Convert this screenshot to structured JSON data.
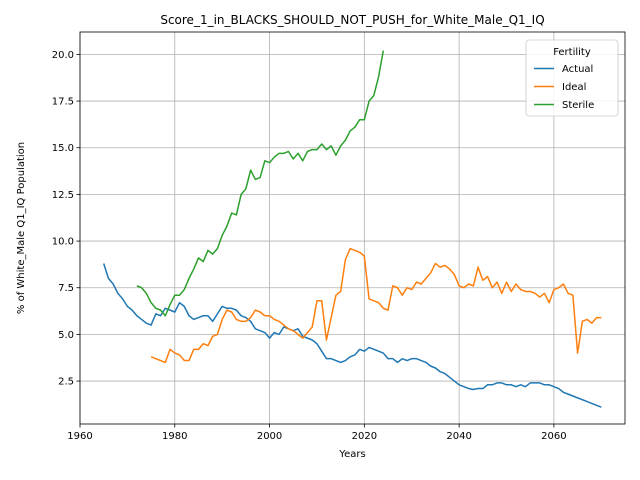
{
  "chart_data": {
    "type": "line",
    "title": "Score_1_in_BLACKS_SHOULD_NOT_PUSH_for_White_Male_Q1_IQ",
    "xlabel": "Years",
    "ylabel": "% of White_Male Q1_IQ Population",
    "xlim": [
      1960,
      2075
    ],
    "ylim": [
      0.2,
      21.2
    ],
    "xticks": [
      1960,
      1980,
      2000,
      2020,
      2040,
      2060
    ],
    "xtick_labels": [
      "1960",
      "1980",
      "2000",
      "2020",
      "2040",
      "2060"
    ],
    "yticks": [
      2.5,
      5.0,
      7.5,
      10.0,
      12.5,
      15.0,
      17.5,
      20.0
    ],
    "ytick_labels": [
      "2.5",
      "5.0",
      "7.5",
      "10.0",
      "12.5",
      "15.0",
      "17.5",
      "20.0"
    ],
    "grid": true,
    "legend": {
      "title": "Fertility",
      "placement": "top-right"
    },
    "series": [
      {
        "name": "Actual",
        "color": "#1f77b4",
        "x": [
          1965,
          1966,
          1967,
          1968,
          1969,
          1970,
          1971,
          1972,
          1973,
          1974,
          1975,
          1976,
          1977,
          1978,
          1979,
          1980,
          1981,
          1982,
          1983,
          1984,
          1985,
          1986,
          1987,
          1988,
          1989,
          1990,
          1991,
          1992,
          1993,
          1994,
          1995,
          1996,
          1997,
          1998,
          1999,
          2000,
          2001,
          2002,
          2003,
          2004,
          2005,
          2006,
          2007,
          2008,
          2009,
          2010,
          2011,
          2012,
          2013,
          2014,
          2015,
          2016,
          2017,
          2018,
          2019,
          2020,
          2021,
          2022,
          2023,
          2024,
          2025,
          2026,
          2027,
          2028,
          2029,
          2030,
          2031,
          2032,
          2033,
          2034,
          2035,
          2036,
          2037,
          2038,
          2039,
          2040,
          2041,
          2042,
          2043,
          2044,
          2045,
          2046,
          2047,
          2048,
          2049,
          2050,
          2051,
          2052,
          2053,
          2054,
          2055,
          2056,
          2057,
          2058,
          2059,
          2060,
          2061,
          2062,
          2063,
          2064,
          2065,
          2066,
          2067,
          2068,
          2069,
          2070
        ],
        "values": [
          8.8,
          8.0,
          7.7,
          7.2,
          6.9,
          6.5,
          6.3,
          6.0,
          5.8,
          5.6,
          5.5,
          6.1,
          6.0,
          6.4,
          6.3,
          6.2,
          6.7,
          6.5,
          6.0,
          5.8,
          5.9,
          6.0,
          6.0,
          5.7,
          6.1,
          6.5,
          6.4,
          6.4,
          6.3,
          6.0,
          5.9,
          5.7,
          5.3,
          5.2,
          5.1,
          4.8,
          5.1,
          5.0,
          5.4,
          5.3,
          5.2,
          5.3,
          4.9,
          4.8,
          4.7,
          4.5,
          4.1,
          3.7,
          3.7,
          3.6,
          3.5,
          3.6,
          3.8,
          3.9,
          4.2,
          4.1,
          4.3,
          4.2,
          4.1,
          4.0,
          3.7,
          3.7,
          3.5,
          3.7,
          3.6,
          3.7,
          3.7,
          3.6,
          3.5,
          3.3,
          3.2,
          3.0,
          2.9,
          2.7,
          2.5,
          2.3,
          2.2,
          2.1,
          2.05,
          2.1,
          2.1,
          2.3,
          2.3,
          2.4,
          2.4,
          2.3,
          2.3,
          2.2,
          2.3,
          2.2,
          2.4,
          2.4,
          2.4,
          2.3,
          2.3,
          2.2,
          2.1,
          1.9,
          1.8,
          1.7,
          1.6,
          1.5,
          1.4,
          1.3,
          1.2,
          1.1
        ]
      },
      {
        "name": "Ideal",
        "color": "#ff7f0e",
        "x": [
          1975,
          1976,
          1977,
          1978,
          1979,
          1980,
          1981,
          1982,
          1983,
          1984,
          1985,
          1986,
          1987,
          1988,
          1989,
          1990,
          1991,
          1992,
          1993,
          1994,
          1995,
          1996,
          1997,
          1998,
          1999,
          2000,
          2001,
          2002,
          2003,
          2004,
          2005,
          2006,
          2007,
          2008,
          2009,
          2010,
          2011,
          2012,
          2013,
          2014,
          2015,
          2016,
          2017,
          2018,
          2019,
          2020,
          2021,
          2022,
          2023,
          2024,
          2025,
          2026,
          2027,
          2028,
          2029,
          2030,
          2031,
          2032,
          2033,
          2034,
          2035,
          2036,
          2037,
          2038,
          2039,
          2040,
          2041,
          2042,
          2043,
          2044,
          2045,
          2046,
          2047,
          2048,
          2049,
          2050,
          2051,
          2052,
          2053,
          2054,
          2055,
          2056,
          2057,
          2058,
          2059,
          2060,
          2061,
          2062,
          2063,
          2064,
          2065,
          2066,
          2067,
          2068,
          2069,
          2070
        ],
        "values": [
          3.8,
          3.7,
          3.6,
          3.5,
          4.2,
          4.0,
          3.9,
          3.6,
          3.6,
          4.2,
          4.2,
          4.5,
          4.4,
          4.9,
          5.0,
          5.8,
          6.3,
          6.2,
          5.8,
          5.7,
          5.7,
          5.9,
          6.3,
          6.2,
          6.0,
          6.0,
          5.8,
          5.7,
          5.5,
          5.3,
          5.2,
          5.0,
          4.8,
          5.1,
          5.4,
          6.8,
          6.8,
          4.7,
          5.9,
          7.1,
          7.3,
          9.0,
          9.6,
          9.5,
          9.4,
          9.2,
          6.9,
          6.8,
          6.7,
          6.4,
          6.3,
          7.6,
          7.5,
          7.1,
          7.5,
          7.4,
          7.8,
          7.7,
          8.0,
          8.3,
          8.8,
          8.6,
          8.7,
          8.5,
          8.2,
          7.6,
          7.5,
          7.7,
          7.6,
          8.6,
          7.9,
          8.1,
          7.5,
          7.8,
          7.2,
          7.8,
          7.3,
          7.7,
          7.4,
          7.3,
          7.3,
          7.2,
          7.0,
          7.2,
          6.7,
          7.4,
          7.5,
          7.7,
          7.2,
          7.1,
          4.0,
          5.7,
          5.8,
          5.6,
          5.9,
          5.9
        ]
      },
      {
        "name": "Sterile",
        "color": "#2ca02c",
        "x": [
          1972,
          1973,
          1974,
          1975,
          1976,
          1977,
          1978,
          1979,
          1980,
          1981,
          1982,
          1983,
          1984,
          1985,
          1986,
          1987,
          1988,
          1989,
          1990,
          1991,
          1992,
          1993,
          1994,
          1995,
          1996,
          1997,
          1998,
          1999,
          2000,
          2001,
          2002,
          2003,
          2004,
          2005,
          2006,
          2007,
          2008,
          2009,
          2010,
          2011,
          2012,
          2013,
          2014,
          2015,
          2016,
          2017,
          2018,
          2019,
          2020,
          2021,
          2022,
          2023,
          2024
        ],
        "values": [
          7.6,
          7.5,
          7.2,
          6.7,
          6.4,
          6.3,
          6.0,
          6.6,
          7.1,
          7.1,
          7.4,
          8.0,
          8.5,
          9.1,
          8.9,
          9.5,
          9.3,
          9.6,
          10.3,
          10.8,
          11.5,
          11.4,
          12.5,
          12.8,
          13.8,
          13.3,
          13.4,
          14.3,
          14.2,
          14.5,
          14.7,
          14.7,
          14.8,
          14.4,
          14.7,
          14.3,
          14.8,
          14.9,
          14.9,
          15.2,
          14.9,
          15.1,
          14.6,
          15.1,
          15.4,
          15.9,
          16.1,
          16.5,
          16.5,
          17.5,
          17.8,
          18.8,
          20.2
        ]
      }
    ]
  }
}
